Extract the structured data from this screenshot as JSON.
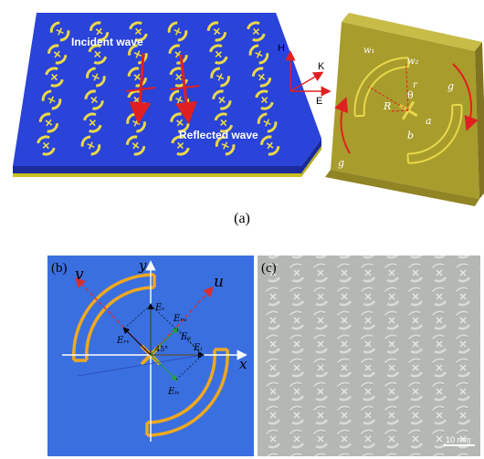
{
  "figure": {
    "panel_a": {
      "caption": "(a)",
      "incident_label": "Incident wave",
      "reflected_label": "Reflected wave",
      "axes": {
        "h": "H",
        "k": "K",
        "e": "E"
      },
      "unit_cell_labels": {
        "w1": "w₁",
        "w2": "w₂",
        "r_big": "R",
        "r_small": "r",
        "theta": "θ",
        "a": "a",
        "b": "b",
        "g_right": "g",
        "g_left": "g"
      }
    },
    "panel_b": {
      "label": "(b)",
      "axis_x": "x",
      "axis_y": "y",
      "axis_u": "u",
      "axis_v": "v",
      "angle": "45°",
      "vectors": {
        "ev": "Eᵥ",
        "ei": "Eᵢ",
        "eu": "Eᵤ",
        "erv": "Eᵣᵥ",
        "eru": "Eᵣᵤ",
        "eiv": "Eᵢᵥ"
      },
      "colors": {
        "background": "#3a6fe0",
        "ring": "#f0a820",
        "axis_dashed": "#d83030"
      }
    },
    "panel_c": {
      "label": "(c)",
      "scale_bar": "10 mm"
    },
    "colors": {
      "substrate_top": "#2a43d8",
      "substrate_side": "#1a2a9a",
      "metal": "#e8d84a",
      "unit_cell": "#a89c2c",
      "arrow_red": "#e02020"
    }
  }
}
